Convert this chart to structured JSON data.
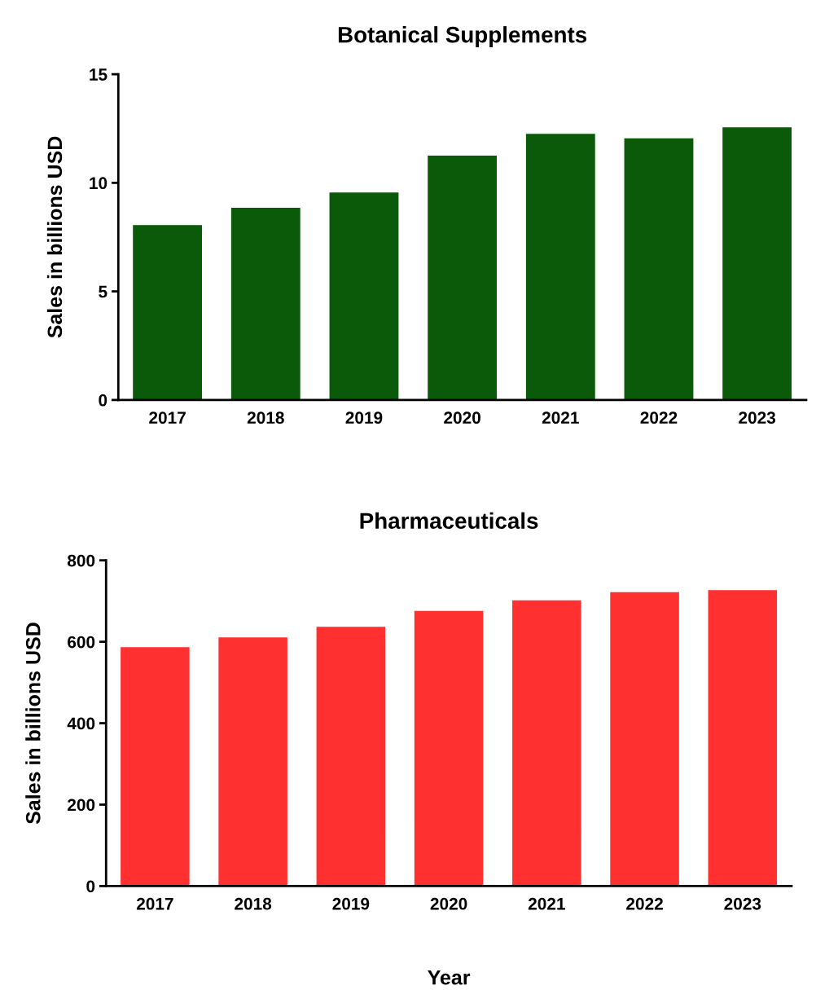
{
  "chart_data": [
    {
      "type": "bar",
      "title": "Botanical Supplements",
      "ylabel": "Sales in billions USD",
      "categories": [
        "2017",
        "2018",
        "2019",
        "2020",
        "2021",
        "2022",
        "2023"
      ],
      "values": [
        8.0,
        8.8,
        9.5,
        11.2,
        12.2,
        12.0,
        12.5
      ],
      "color": "#0a5a0a",
      "ylim": [
        0,
        15
      ],
      "yticks": [
        0,
        5,
        10,
        15
      ],
      "grid": false,
      "legend": false
    },
    {
      "type": "bar",
      "title": "Pharmaceuticals",
      "ylabel": "Sales in billions USD",
      "xlabel": "Year",
      "categories": [
        "2017",
        "2018",
        "2019",
        "2020",
        "2021",
        "2022",
        "2023"
      ],
      "values": [
        584,
        608,
        634,
        673,
        699,
        719,
        724
      ],
      "color": "#ff3030",
      "ylim": [
        0,
        800
      ],
      "yticks": [
        0,
        200,
        400,
        600,
        800
      ],
      "grid": false,
      "legend": false
    }
  ]
}
